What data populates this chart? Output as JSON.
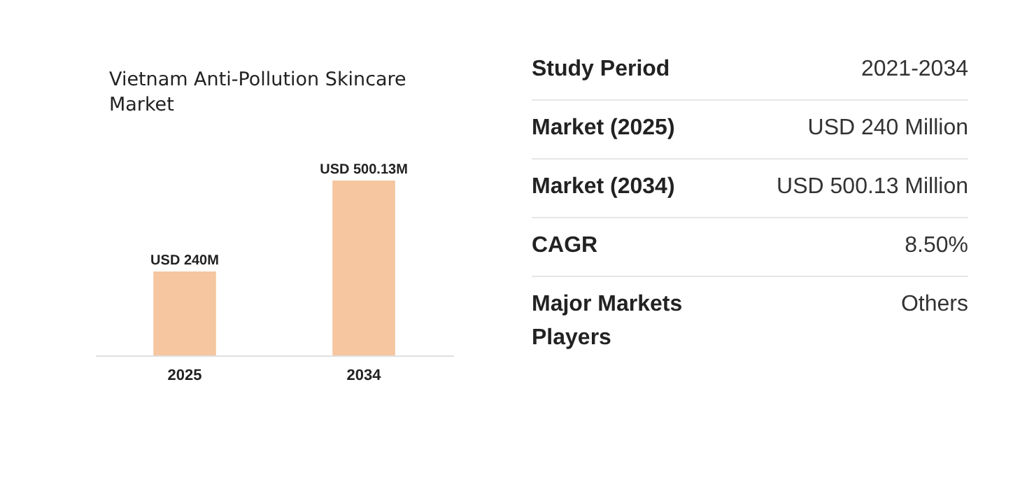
{
  "chart_data": [
    {
      "type": "bar",
      "title": "Vietnam Anti-Pollution Skincare Market",
      "categories": [
        "2025",
        "2034"
      ],
      "values": [
        240000000,
        500130000
      ],
      "value_labels": [
        "USD 240M",
        "USD 500.13M"
      ],
      "color": "#f5c6a0"
    },
    {
      "type": "other",
      "annotations": [
        "Study Period",
        "2021-2034",
        "Market (2025)",
        "USD 240 Million",
        "Market (2034)",
        "USD 500.13 Million",
        "CAGR",
        "8.50%",
        "Major Markets Players",
        "Others"
      ]
    }
  ]
}
